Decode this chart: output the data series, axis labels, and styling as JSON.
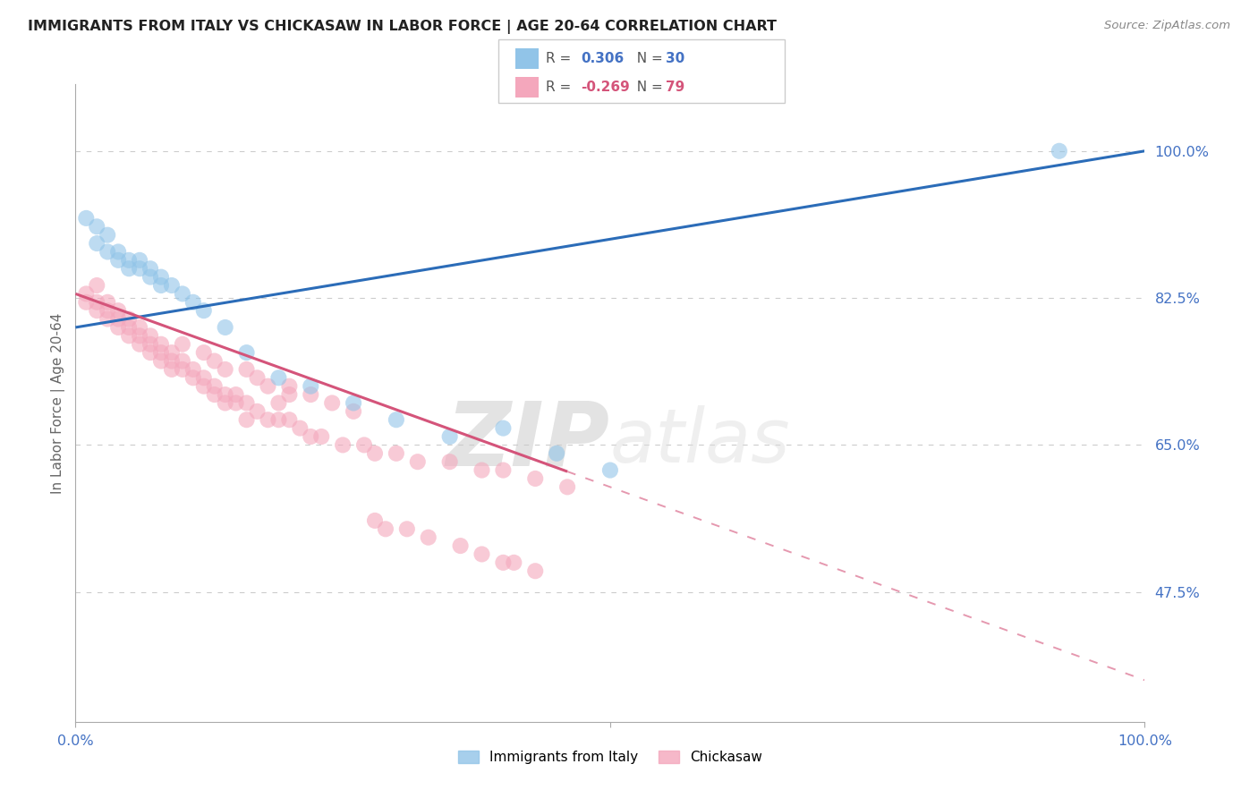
{
  "title": "IMMIGRANTS FROM ITALY VS CHICKASAW IN LABOR FORCE | AGE 20-64 CORRELATION CHART",
  "source": "Source: ZipAtlas.com",
  "ylabel": "In Labor Force | Age 20-64",
  "xlim": [
    0,
    100
  ],
  "ylim": [
    32,
    108
  ],
  "yticks": [
    47.5,
    65.0,
    82.5,
    100.0
  ],
  "blue_R": 0.306,
  "blue_N": 30,
  "pink_R": -0.269,
  "pink_N": 79,
  "blue_color": "#91c4e8",
  "pink_color": "#f4a7bc",
  "blue_line_color": "#2b6cb8",
  "pink_line_color": "#d4547a",
  "watermark_zip": "ZIP",
  "watermark_atlas": "atlas",
  "blue_scatter_x": [
    1,
    2,
    2,
    3,
    3,
    4,
    4,
    5,
    5,
    6,
    6,
    7,
    7,
    8,
    8,
    9,
    10,
    11,
    12,
    14,
    16,
    19,
    22,
    26,
    30,
    35,
    40,
    45,
    50,
    92
  ],
  "blue_scatter_y": [
    92,
    91,
    89,
    90,
    88,
    88,
    87,
    87,
    86,
    87,
    86,
    86,
    85,
    85,
    84,
    84,
    83,
    82,
    81,
    79,
    76,
    73,
    72,
    70,
    68,
    66,
    67,
    64,
    62,
    100
  ],
  "pink_scatter_x": [
    1,
    1,
    2,
    2,
    2,
    3,
    3,
    3,
    4,
    4,
    4,
    5,
    5,
    5,
    6,
    6,
    6,
    7,
    7,
    7,
    8,
    8,
    8,
    9,
    9,
    9,
    10,
    10,
    11,
    11,
    12,
    12,
    13,
    13,
    14,
    14,
    15,
    15,
    16,
    17,
    18,
    19,
    20,
    21,
    22,
    23,
    25,
    27,
    28,
    30,
    32,
    35,
    38,
    40,
    43,
    46,
    28,
    29,
    31,
    33,
    36,
    38,
    40,
    41,
    43,
    20,
    22,
    24,
    26,
    17,
    18,
    20,
    19,
    16,
    14,
    16,
    13,
    12,
    10
  ],
  "pink_scatter_y": [
    83,
    82,
    84,
    82,
    81,
    82,
    81,
    80,
    81,
    80,
    79,
    80,
    79,
    78,
    79,
    78,
    77,
    78,
    77,
    76,
    77,
    76,
    75,
    76,
    75,
    74,
    75,
    74,
    74,
    73,
    73,
    72,
    72,
    71,
    71,
    70,
    71,
    70,
    70,
    69,
    68,
    68,
    68,
    67,
    66,
    66,
    65,
    65,
    64,
    64,
    63,
    63,
    62,
    62,
    61,
    60,
    56,
    55,
    55,
    54,
    53,
    52,
    51,
    51,
    50,
    72,
    71,
    70,
    69,
    73,
    72,
    71,
    70,
    74,
    74,
    68,
    75,
    76,
    77
  ],
  "pink_solid_end_x": 46,
  "blue_line_x0": 0,
  "blue_line_y0": 79,
  "blue_line_x1": 100,
  "blue_line_y1": 100,
  "pink_line_x0": 0,
  "pink_line_y0": 83,
  "pink_line_x1": 100,
  "pink_line_y1": 37
}
